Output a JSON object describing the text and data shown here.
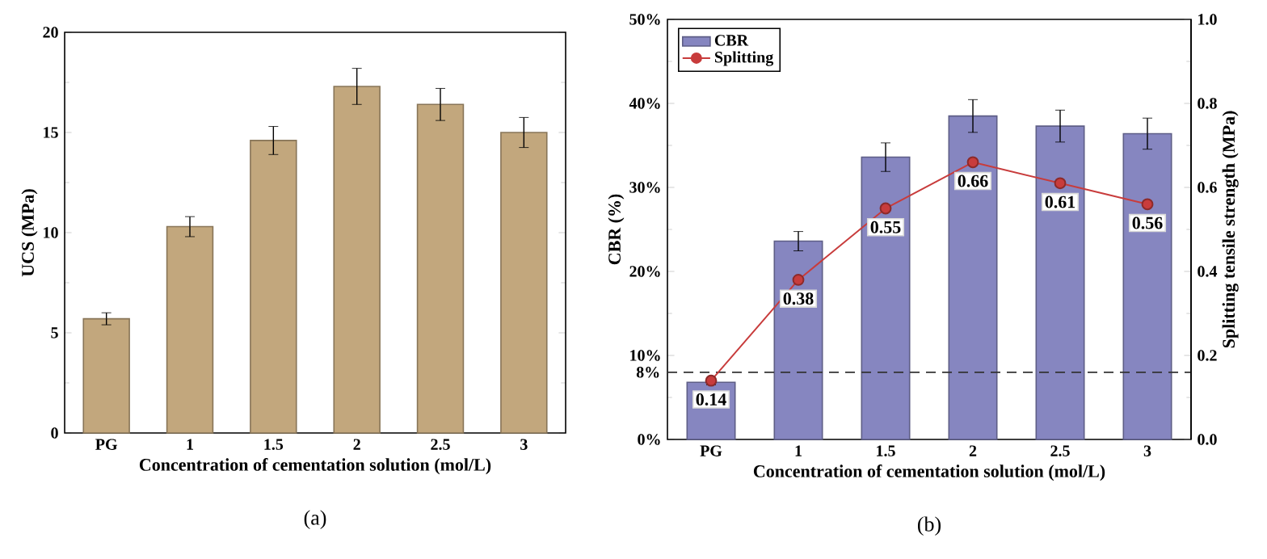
{
  "chart_data": [
    {
      "type": "bar",
      "xlabel": "Concentration of cementation solution (mol/L)",
      "ylabel": "UCS (MPa)",
      "annotations": [
        "(a)"
      ],
      "categories": [
        "PG",
        "1",
        "1.5",
        "2",
        "2.5",
        "3"
      ],
      "series": [
        {
          "color": "#c2a77d",
          "values": [
            5.7,
            10.3,
            14.6,
            17.3,
            16.4,
            15.0
          ],
          "errors": [
            0.3,
            0.5,
            0.7,
            0.9,
            0.8,
            0.75
          ]
        }
      ],
      "ylim": [
        0,
        20
      ],
      "yticks": [
        0,
        5,
        10,
        15,
        20
      ],
      "grid": false,
      "legend": false
    },
    {
      "type": "bar",
      "xlabel": "Concentration of cementation solution (mol/L)",
      "ylabel": "CBR (%)",
      "y2label": "Splitting tensile strength (MPa)",
      "annotations": [
        "(b)"
      ],
      "categories": [
        "PG",
        "1",
        "1.5",
        "2",
        "2.5",
        "3"
      ],
      "series": [
        {
          "name": "CBR",
          "color": "#8686c0",
          "values": [
            6.8,
            23.6,
            33.6,
            38.5,
            37.3,
            36.4
          ],
          "errors": [
            0.3,
            1.15,
            1.7,
            1.95,
            1.9,
            1.85
          ]
        },
        {
          "name": "Splitting",
          "type": "line",
          "axis": "y2",
          "color": "#c83c3c",
          "marker": "circle",
          "data_labels": true,
          "values": [
            0.14,
            0.38,
            0.55,
            0.66,
            0.61,
            0.56
          ]
        }
      ],
      "ylim": [
        0,
        50
      ],
      "yticks": [
        {
          "value": 0,
          "label": "0%"
        },
        {
          "value": 10,
          "label": "10%"
        },
        {
          "value": 20,
          "label": "20%"
        },
        {
          "value": 30,
          "label": "30%"
        },
        {
          "value": 40,
          "label": "40%"
        },
        {
          "value": 50,
          "label": "50%"
        }
      ],
      "y2lim": [
        0,
        1.0
      ],
      "y2ticks": [
        {
          "value": 0,
          "label": "0.0"
        },
        {
          "value": 0.2,
          "label": "0.2"
        },
        {
          "value": 0.4,
          "label": "0.4"
        },
        {
          "value": 0.6,
          "label": "0.6"
        },
        {
          "value": 0.8,
          "label": "0.8"
        },
        {
          "value": 1.0,
          "label": "1.0"
        }
      ],
      "ref_lines": [
        {
          "axis": "y",
          "value": 8,
          "label": "8%",
          "color": "#333333",
          "line_style": "dashed"
        }
      ],
      "grid": false,
      "legend": "top left"
    }
  ]
}
